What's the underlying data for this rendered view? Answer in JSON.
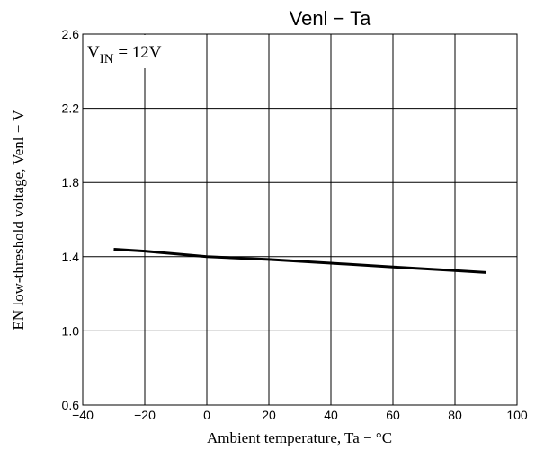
{
  "chart_data": {
    "type": "line",
    "title": "Venl − Ta",
    "xlabel": "Ambient temperature, Ta − °C",
    "ylabel": "EN low-threshold voltage, Venl − V",
    "xlim": [
      -40,
      100
    ],
    "ylim": [
      0.6,
      2.6
    ],
    "x_ticks": [
      -40,
      -20,
      0,
      20,
      40,
      60,
      80,
      100
    ],
    "y_ticks": [
      0.6,
      1.0,
      1.4,
      1.8,
      2.2,
      2.6
    ],
    "x_tick_labels": [
      "−40",
      "−20",
      "0",
      "20",
      "40",
      "60",
      "80",
      "100"
    ],
    "y_tick_labels": [
      "0.6",
      "1.0",
      "1.4",
      "1.8",
      "2.2",
      "2.6"
    ],
    "grid": true,
    "annotation": {
      "prefix": "V",
      "subscript": "IN",
      "suffix": " = 12V"
    },
    "series": [
      {
        "x": [
          -30,
          -20,
          0,
          20,
          40,
          60,
          80,
          90
        ],
        "y": [
          1.44,
          1.43,
          1.4,
          1.385,
          1.365,
          1.345,
          1.325,
          1.315
        ]
      }
    ],
    "line_color": "#000000",
    "grid_color": "#000000"
  }
}
